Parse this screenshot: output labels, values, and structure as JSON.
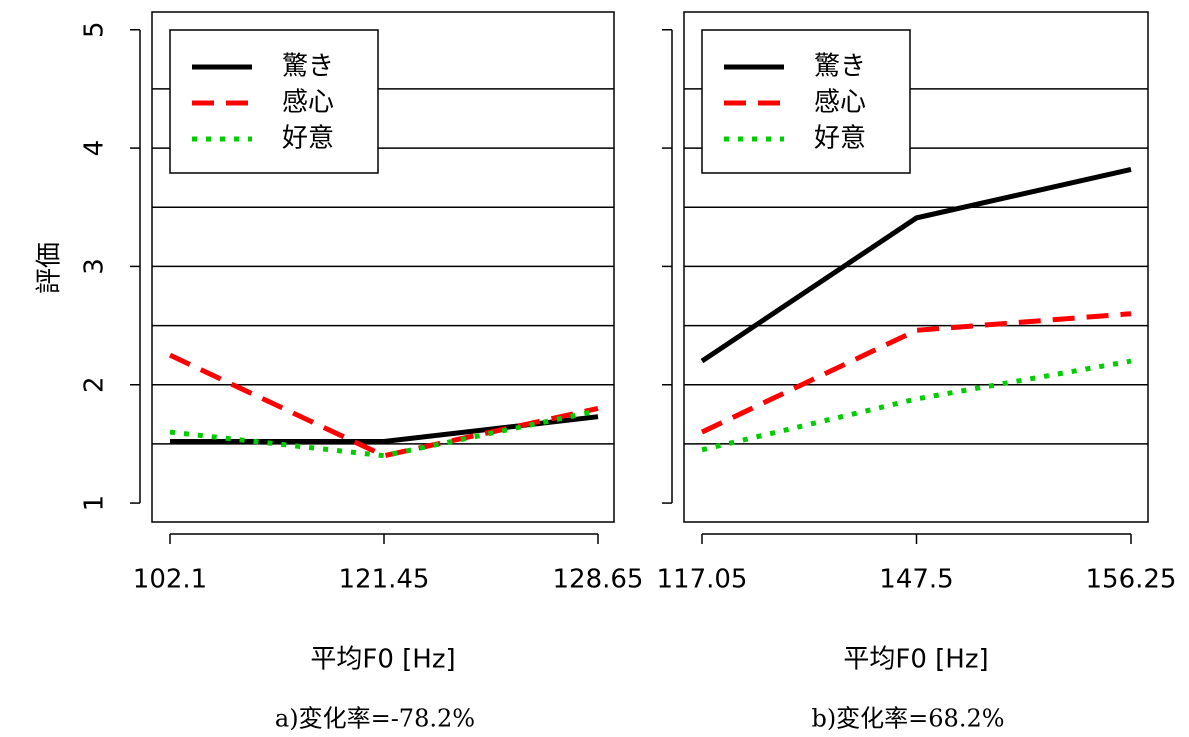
{
  "chart_data": [
    {
      "type": "line",
      "ylabel": "評価",
      "xlabel": "平均F0 [Hz]",
      "caption": "a)変化率=-78.2%",
      "categories": [
        "102.1",
        "121.45",
        "128.65"
      ],
      "series": [
        {
          "name": "驚き",
          "color": "#000000",
          "dash": "solid",
          "values": [
            1.52,
            1.52,
            1.73
          ]
        },
        {
          "name": "感心",
          "color": "#ff0000",
          "dash": "dashed",
          "values": [
            2.25,
            1.4,
            1.8
          ]
        },
        {
          "name": "好意",
          "color": "#00cc00",
          "dash": "dotted",
          "values": [
            1.6,
            1.4,
            1.78
          ]
        }
      ],
      "ylim": [
        0.84,
        5.15
      ],
      "yticks": [
        1,
        2,
        3,
        4,
        5
      ],
      "grid": [
        1.5,
        2,
        2.5,
        3,
        3.5,
        4,
        4.5
      ],
      "legend": "top-left"
    },
    {
      "type": "line",
      "xlabel": "平均F0 [Hz]",
      "caption": "b)変化率=68.2%",
      "categories": [
        "117.05",
        "147.5",
        "156.25"
      ],
      "series": [
        {
          "name": "驚き",
          "color": "#000000",
          "dash": "solid",
          "values": [
            2.2,
            3.41,
            3.82
          ]
        },
        {
          "name": "感心",
          "color": "#ff0000",
          "dash": "dashed",
          "values": [
            1.6,
            2.46,
            2.6
          ]
        },
        {
          "name": "好意",
          "color": "#00cc00",
          "dash": "dotted",
          "values": [
            1.45,
            1.88,
            2.2
          ]
        }
      ],
      "ylim": [
        0.84,
        5.15
      ],
      "yticks": [
        1,
        2,
        3,
        4,
        5
      ],
      "grid": [
        1.5,
        2,
        2.5,
        3,
        3.5,
        4,
        4.5
      ],
      "legend": "top-left"
    }
  ]
}
